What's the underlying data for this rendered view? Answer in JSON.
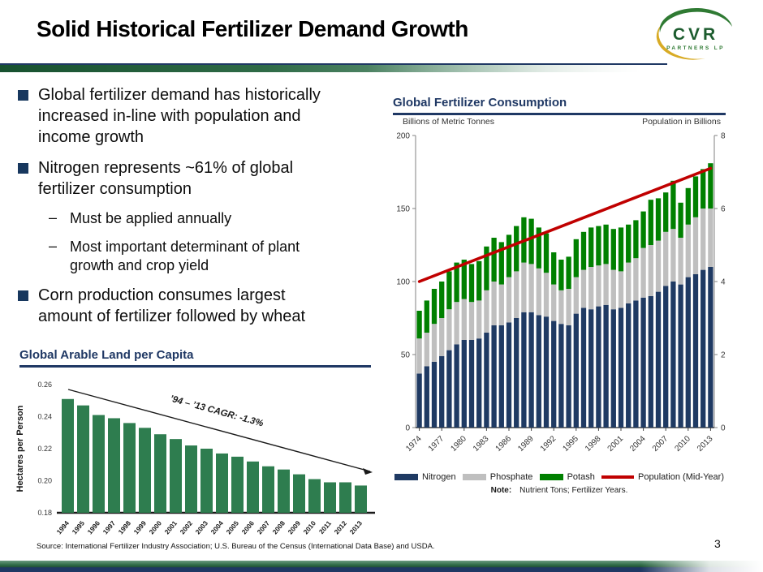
{
  "slide": {
    "title": "Solid Historical Fertilizer Demand Growth",
    "page_number": "3",
    "source": "Source:  International Fertilizer Industry Association; U.S. Bureau of the Census (International Data Base) and USDA.",
    "logo": {
      "brand": "CVR",
      "subtext": "PARTNERS LP"
    }
  },
  "markers": {
    "sub": "–"
  },
  "bullets": {
    "b1": "Global fertilizer demand has historically\nincreased in-line with population and\nincome growth",
    "b2": "Nitrogen represents ~61% of global\nfertilizer consumption",
    "s1": "Must be applied annually",
    "s2": "Most important determinant of plant\ngrowth and crop yield",
    "b3": "Corn production consumes largest\namount of fertilizer followed by wheat"
  },
  "colors": {
    "navy": "#1f3864",
    "bar_navy": "#1f3a63",
    "bar_gray": "#bfbfbf",
    "bar_green": "#008000",
    "line_red": "#c00000",
    "arable_green": "#2e7d4f",
    "axis_gray": "#808080",
    "axis_dark": "#404040",
    "tick_text": "#333333"
  },
  "chart_data": [
    {
      "type": "bar",
      "subtype": "stacked-with-line",
      "title": "Global Fertilizer Consumption",
      "left_axis_label": "Billions of Metric Tonnes",
      "right_axis_label": "Population in Billions",
      "ylim_left": [
        0,
        200
      ],
      "ylim_right": [
        0,
        8
      ],
      "left_ticks": [
        0,
        50,
        100,
        150,
        200
      ],
      "right_ticks": [
        0,
        2,
        4,
        6,
        8
      ],
      "years": [
        1974,
        1975,
        1976,
        1977,
        1978,
        1979,
        1980,
        1981,
        1982,
        1983,
        1984,
        1985,
        1986,
        1987,
        1988,
        1989,
        1990,
        1991,
        1992,
        1993,
        1994,
        1995,
        1996,
        1997,
        1998,
        1999,
        2000,
        2001,
        2002,
        2003,
        2004,
        2005,
        2006,
        2007,
        2008,
        2009,
        2010,
        2011,
        2012,
        2013
      ],
      "x_tick_labels": [
        "1974",
        "1977",
        "1980",
        "1983",
        "1986",
        "1989",
        "1992",
        "1995",
        "1998",
        "2001",
        "2004",
        "2007",
        "2010",
        "2013"
      ],
      "series": [
        {
          "name": "Nitrogen",
          "color": "#1f3a63",
          "values": [
            37,
            42,
            45,
            49,
            53,
            57,
            60,
            60,
            61,
            65,
            70,
            70,
            72,
            75,
            79,
            79,
            77,
            76,
            73,
            71,
            70,
            78,
            82,
            81,
            83,
            84,
            81,
            82,
            85,
            87,
            89,
            90,
            93,
            97,
            100,
            98,
            103,
            105,
            108,
            110
          ]
        },
        {
          "name": "Phosphate",
          "color": "#bfbfbf",
          "values": [
            24,
            23,
            26,
            26,
            28,
            29,
            28,
            26,
            26,
            29,
            30,
            28,
            31,
            32,
            34,
            33,
            32,
            30,
            25,
            23,
            25,
            25,
            26,
            29,
            28,
            28,
            27,
            25,
            28,
            29,
            34,
            35,
            35,
            37,
            36,
            32,
            36,
            39,
            42,
            40
          ]
        },
        {
          "name": "Potash",
          "color": "#008000",
          "values": [
            19,
            22,
            24,
            25,
            26,
            27,
            27,
            26,
            27,
            30,
            30,
            29,
            29,
            31,
            31,
            31,
            28,
            27,
            22,
            21,
            22,
            26,
            26,
            27,
            27,
            27,
            28,
            30,
            26,
            26,
            25,
            31,
            29,
            27,
            33,
            24,
            25,
            28,
            27,
            31
          ]
        }
      ],
      "line_series": {
        "name": "Population (Mid-Year)",
        "color": "#c00000",
        "axis": "right",
        "start": 4.0,
        "end": 7.1
      },
      "note_label": "Note:",
      "note_text": "Nutrient Tons; Fertilizer Years.",
      "legend_position": "bottom"
    },
    {
      "type": "bar",
      "title": "Global Arable Land per Capita",
      "ylabel": "Hectares per Person",
      "ylim": [
        0.18,
        0.26
      ],
      "yticks": [
        0.26,
        0.24,
        0.22,
        0.2,
        0.18
      ],
      "categories": [
        "1994",
        "1995",
        "1996",
        "1997",
        "1998",
        "1999",
        "2000",
        "2001",
        "2002",
        "2003",
        "2004",
        "2005",
        "2006",
        "2007",
        "2008",
        "2009",
        "2010",
        "2011",
        "2012",
        "2013"
      ],
      "values": [
        0.251,
        0.247,
        0.241,
        0.239,
        0.236,
        0.233,
        0.229,
        0.226,
        0.222,
        0.22,
        0.217,
        0.215,
        0.212,
        0.209,
        0.207,
        0.204,
        0.201,
        0.199,
        0.199,
        0.197
      ],
      "annotation": "’94 – ’13 CAGR: -1.3%",
      "bar_color": "#2e7d4f",
      "grid": false
    }
  ]
}
